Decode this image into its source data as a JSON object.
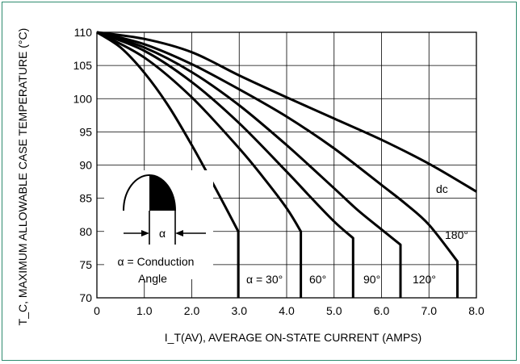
{
  "chart_data": {
    "type": "line",
    "title": "",
    "xlabel": "I_T(AV), AVERAGE ON-STATE CURRENT (AMPS)",
    "ylabel": "T_C, MAXIMUM ALLOWABLE CASE TEMPERATURE (°C)",
    "xlim": [
      0,
      8
    ],
    "ylim": [
      70,
      110
    ],
    "x_ticks": [
      "0",
      "1.0",
      "2.0",
      "3.0",
      "4.0",
      "5.0",
      "6.0",
      "7.0",
      "8.0"
    ],
    "y_ticks": [
      "70",
      "75",
      "80",
      "85",
      "90",
      "95",
      "100",
      "105",
      "110"
    ],
    "grid": true,
    "series": [
      {
        "name": "α = 30°",
        "x": [
          0,
          0.5,
          1.0,
          1.5,
          2.0,
          2.5,
          2.98,
          2.98
        ],
        "y": [
          110,
          107.7,
          103.9,
          99,
          93,
          86.5,
          80,
          70
        ]
      },
      {
        "name": "60°",
        "x": [
          0,
          1.0,
          2.0,
          3.0,
          3.5,
          4.0,
          4.3,
          4.3
        ],
        "y": [
          110,
          106.2,
          100.2,
          92.5,
          88.2,
          83.5,
          80,
          70
        ]
      },
      {
        "name": "90°",
        "x": [
          0,
          1.0,
          2.0,
          3.0,
          4.0,
          4.5,
          5.0,
          5.4,
          5.4
        ],
        "y": [
          110,
          107.2,
          102.5,
          96.3,
          89,
          85.2,
          81.5,
          79,
          70
        ]
      },
      {
        "name": "120°",
        "x": [
          0,
          1.0,
          2.0,
          3.0,
          4.0,
          5.0,
          5.5,
          6.0,
          6.4,
          6.4
        ],
        "y": [
          110,
          107.7,
          104,
          99,
          93,
          86.5,
          83.2,
          80.3,
          78,
          70
        ]
      },
      {
        "name": "180°",
        "x": [
          0,
          1.0,
          2.0,
          3.0,
          4.0,
          5.0,
          6.0,
          6.5,
          7.0,
          7.6,
          7.6
        ],
        "y": [
          110,
          108.2,
          105.2,
          101.4,
          97.3,
          92.5,
          87,
          84.2,
          81,
          75.5,
          70
        ]
      },
      {
        "name": "dc",
        "x": [
          0,
          1.0,
          2.0,
          3.0,
          4.0,
          5.0,
          6.0,
          7.0,
          8.0
        ],
        "y": [
          110,
          109,
          107,
          103.5,
          100.2,
          97,
          93.8,
          90.2,
          86
        ]
      }
    ],
    "annotations": {
      "dc_label": "dc",
      "deg180_label": "180°",
      "alpha30_label": "α = 30°",
      "deg60_label": "60°",
      "deg90_label": "90°",
      "deg120_label": "120°",
      "alpha_symbol": "α",
      "conduction_line1": "α = Conduction",
      "conduction_line2": "Angle"
    },
    "line_color": "#000000",
    "frame_color": "#2e8b6f"
  }
}
